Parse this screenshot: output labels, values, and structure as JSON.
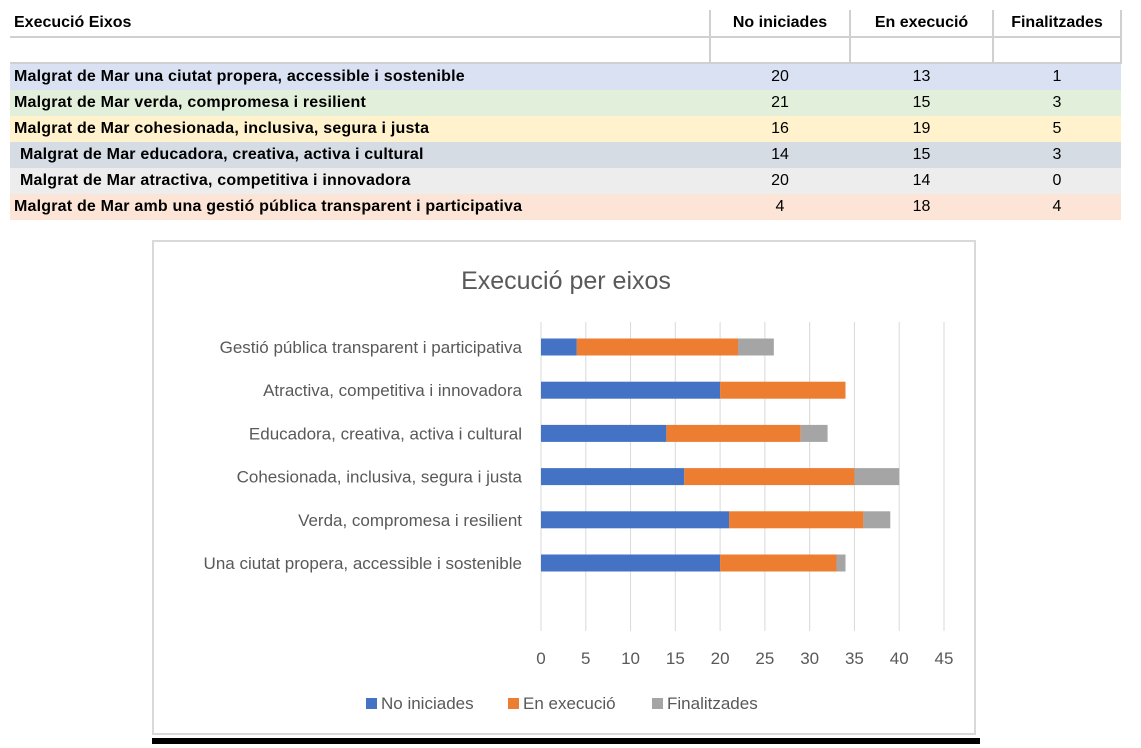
{
  "table": {
    "headers": [
      "Execució Eixos",
      "No iniciades",
      "En execució",
      "Finalitzades"
    ],
    "rows": [
      {
        "name": "Malgrat de Mar una ciutat propera, accessible i sostenible",
        "values": [
          20,
          13,
          1
        ],
        "bg": "#d9e1f2"
      },
      {
        "name": "Malgrat de Mar verda, compromesa i resilient",
        "values": [
          21,
          15,
          3
        ],
        "bg": "#e2efda"
      },
      {
        "name": "Malgrat de Mar cohesionada, inclusiva, segura i justa",
        "values": [
          16,
          19,
          5
        ],
        "bg": "#fff2cc"
      },
      {
        "name": "Malgrat de Mar educadora, creativa, activa i cultural",
        "values": [
          14,
          15,
          3
        ],
        "bg": "#d6dce4"
      },
      {
        "name": "Malgrat de Mar atractiva, competitiva i innovadora",
        "values": [
          20,
          14,
          0
        ],
        "bg": "#ededed"
      },
      {
        "name": "Malgrat de Mar amb una gestió pública transparent i participativa",
        "values": [
          4,
          18,
          4
        ],
        "bg": "#fce4d6"
      }
    ]
  },
  "chart_data": {
    "type": "bar",
    "orientation": "horizontal",
    "stacked": true,
    "title": "Execució per eixos",
    "categories": [
      "Gestió pública transparent i participativa",
      "Atractiva, competitiva i innovadora",
      "Educadora, creativa, activa i cultural",
      "Cohesionada, inclusiva, segura i justa",
      "Verda, compromesa i resilient",
      "Una ciutat propera, accessible i sostenible"
    ],
    "series": [
      {
        "name": "No iniciades",
        "color": "#4472c4",
        "values": [
          4,
          20,
          14,
          16,
          21,
          20
        ]
      },
      {
        "name": "En execució",
        "color": "#ed7d31",
        "values": [
          18,
          14,
          15,
          19,
          15,
          13
        ]
      },
      {
        "name": "Finalitzades",
        "color": "#a5a5a5",
        "values": [
          4,
          0,
          3,
          5,
          3,
          1
        ]
      }
    ],
    "xlim": [
      0,
      45
    ],
    "xticks": [
      0,
      5,
      10,
      15,
      20,
      25,
      30,
      35,
      40,
      45
    ],
    "grid": true,
    "legend": "bottom"
  }
}
